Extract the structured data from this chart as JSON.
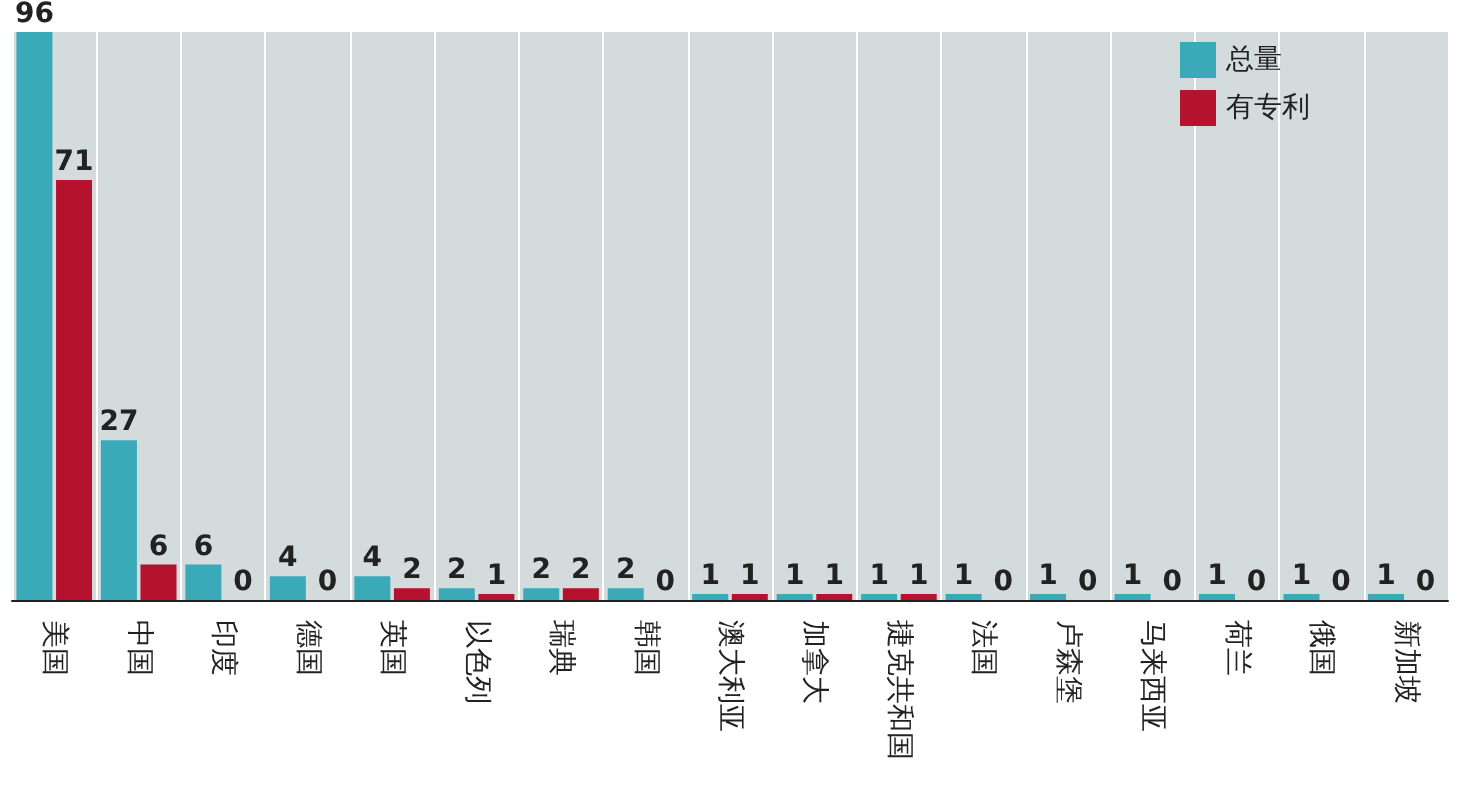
{
  "chart_data": {
    "type": "bar",
    "categories": [
      "美国",
      "中国",
      "印度",
      "德国",
      "英国",
      "以色列",
      "瑞典",
      "韩国",
      "澳大利亚",
      "加拿大",
      "捷克共和国",
      "法国",
      "卢森堡",
      "马来西亚",
      "荷兰",
      "俄国",
      "新加坡"
    ],
    "series": [
      {
        "name": "总量",
        "color": "#3aa9b8",
        "values": [
          96,
          27,
          6,
          4,
          4,
          2,
          2,
          2,
          1,
          1,
          1,
          1,
          1,
          1,
          1,
          1,
          1
        ]
      },
      {
        "name": "有专利",
        "color": "#b5122e",
        "values": [
          71,
          6,
          0,
          0,
          2,
          1,
          2,
          0,
          1,
          1,
          1,
          0,
          0,
          0,
          0,
          0,
          0
        ]
      }
    ],
    "data_labels": true,
    "grid": "x",
    "legend": "top right"
  }
}
